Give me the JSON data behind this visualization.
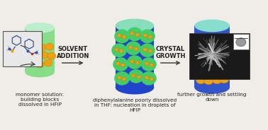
{
  "bg_color": "#f0ede8",
  "tube1_body_color": "#88dd88",
  "tube1_top_color": "#bbeecc",
  "tube2_body_color": "#2244cc",
  "tube2_top_color": "#88ddbb",
  "tube3_body_color": "#3355cc",
  "tube3_top_color": "#88ddcc",
  "orange_color": "#f0a010",
  "orange_edge": "#c87800",
  "green_droplet_color": "#44cc66",
  "arrow_color": "#444444",
  "label1": "monomer solution:\nbuilding blocks\ndissolved in HFIP",
  "label2": "diphenylalanine poorly dissolved\nin THF: nucleation in droplets of\nHFIP",
  "label3": "further growth and settling\ndown",
  "arrow1_label": "SOLVENT\nADDITION",
  "arrow2_label": "CRYSTAL\nGROWTH",
  "text_color": "#222222",
  "font_size": 5.2,
  "arrow_font_size": 6.0
}
